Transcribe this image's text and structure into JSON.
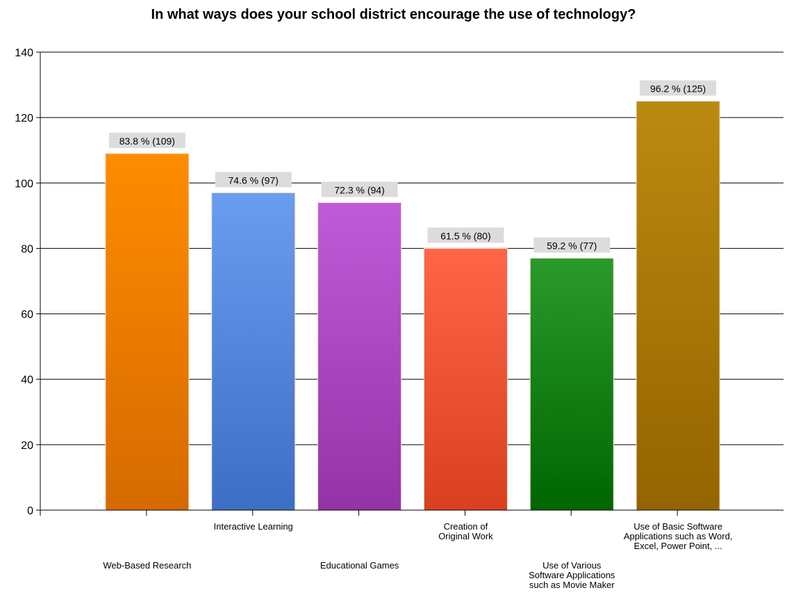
{
  "chart_data": {
    "type": "bar",
    "title": "In what ways does your school district encourage the use of technology?",
    "xlabel": "",
    "ylabel": "",
    "ylim": [
      0,
      140
    ],
    "yticks": [
      0,
      20,
      40,
      60,
      80,
      100,
      120,
      140
    ],
    "grid": true,
    "legend": "none",
    "categories": [
      "Web-Based Research",
      "Interactive Learning",
      "Educational Games",
      "Creation of Original Work",
      "Use of Various Software Applications such as Movie Maker",
      "Use of Basic Software Applications such as Word, Excel, Power Point, ..."
    ],
    "category_label_lines": [
      [
        "Web-Based Research"
      ],
      [
        "Interactive Learning"
      ],
      [
        "Educational Games"
      ],
      [
        "Creation of",
        "Original Work"
      ],
      [
        "Use of Various",
        "Software Applications",
        "such as Movie Maker"
      ],
      [
        "Use of Basic Software",
        "Applications such as Word,",
        "Excel, Power Point, ..."
      ]
    ],
    "values": [
      109,
      97,
      94,
      80,
      77,
      125
    ],
    "data_labels": [
      "83.8 % (109)",
      "74.6 % (97)",
      "72.3 % (94)",
      "61.5 % (80)",
      "59.2 % (77)",
      "96.2 % (125)"
    ],
    "colors": [
      [
        "#ff8c00",
        "#d56a00"
      ],
      [
        "#6a9cf0",
        "#3d6ec6"
      ],
      [
        "#c05bd8",
        "#9433a8"
      ],
      [
        "#ff6648",
        "#d8401f"
      ],
      [
        "#2a9a2a",
        "#006600"
      ],
      [
        "#bb8a10",
        "#946400"
      ]
    ]
  }
}
